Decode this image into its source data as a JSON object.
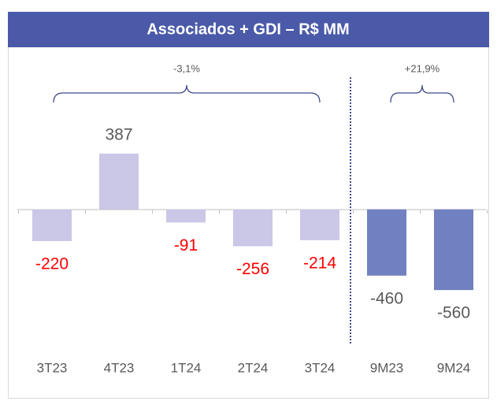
{
  "chart_data": {
    "type": "bar",
    "title": "Associados + GDI – R$ MM",
    "categories": [
      "3T23",
      "4T23",
      "1T24",
      "2T24",
      "3T24",
      "9M23",
      "9M24"
    ],
    "values": [
      -220,
      387,
      -91,
      -256,
      -214,
      -460,
      -560
    ],
    "bar_colors": [
      "#cbc7e7",
      "#cbc7e7",
      "#cbc7e7",
      "#cbc7e7",
      "#cbc7e7",
      "#7180c0",
      "#7180c0"
    ],
    "label_colors": [
      "#ff0000",
      "#595959",
      "#ff0000",
      "#ff0000",
      "#ff0000",
      "#595959",
      "#595959"
    ],
    "annotations": [
      "-3,1%",
      "+21,9%"
    ],
    "ylim": [
      -800,
      600
    ]
  }
}
